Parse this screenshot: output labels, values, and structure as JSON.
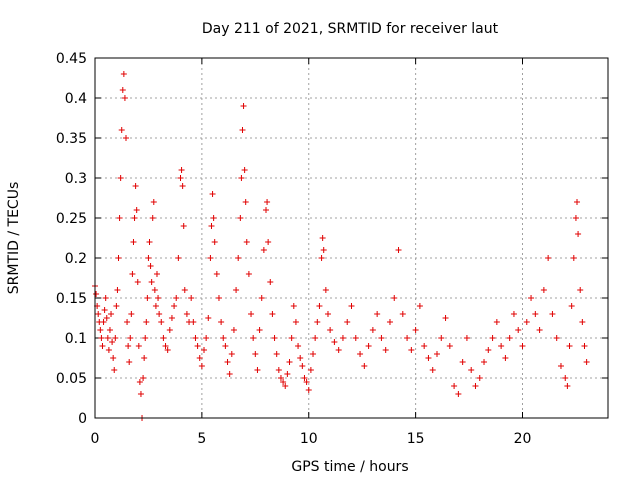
{
  "chart_data": {
    "type": "scatter",
    "title": "Day 211 of 2021, SRMTID for receiver laut",
    "xlabel": "GPS time / hours",
    "ylabel": "SRMTID / TECUs",
    "xlim": [
      0,
      24
    ],
    "ylim": [
      0,
      0.45
    ],
    "xticks": [
      0,
      5,
      10,
      15,
      20
    ],
    "xtick_labels": [
      "0",
      "5",
      "10",
      "15",
      "20"
    ],
    "yticks": [
      0,
      0.05,
      0.1,
      0.15,
      0.2,
      0.25,
      0.3,
      0.35,
      0.4,
      0.45
    ],
    "ytick_labels": [
      "0",
      "0.05",
      "0.1",
      "0.15",
      "0.2",
      "0.25",
      "0.3",
      "0.35",
      "0.4",
      "0.45"
    ],
    "grid": true,
    "marker": "plus",
    "color": "#e00000",
    "series": [
      {
        "name": "SRMTID",
        "points": [
          [
            0.0,
            0.165
          ],
          [
            0.05,
            0.155
          ],
          [
            0.1,
            0.14
          ],
          [
            0.15,
            0.13
          ],
          [
            0.2,
            0.12
          ],
          [
            0.25,
            0.11
          ],
          [
            0.3,
            0.1
          ],
          [
            0.35,
            0.09
          ],
          [
            0.4,
            0.12
          ],
          [
            0.45,
            0.135
          ],
          [
            0.5,
            0.15
          ],
          [
            0.55,
            0.125
          ],
          [
            0.6,
            0.1
          ],
          [
            0.65,
            0.085
          ],
          [
            0.7,
            0.11
          ],
          [
            0.75,
            0.13
          ],
          [
            0.8,
            0.095
          ],
          [
            0.85,
            0.075
          ],
          [
            0.9,
            0.06
          ],
          [
            0.95,
            0.1
          ],
          [
            1.0,
            0.14
          ],
          [
            1.05,
            0.16
          ],
          [
            1.1,
            0.2
          ],
          [
            1.15,
            0.25
          ],
          [
            1.2,
            0.3
          ],
          [
            1.25,
            0.36
          ],
          [
            1.3,
            0.41
          ],
          [
            1.35,
            0.43
          ],
          [
            1.4,
            0.4
          ],
          [
            1.45,
            0.35
          ],
          [
            1.5,
            0.12
          ],
          [
            1.55,
            0.09
          ],
          [
            1.6,
            0.07
          ],
          [
            1.65,
            0.1
          ],
          [
            1.7,
            0.13
          ],
          [
            1.75,
            0.18
          ],
          [
            1.8,
            0.22
          ],
          [
            1.85,
            0.25
          ],
          [
            1.9,
            0.29
          ],
          [
            1.95,
            0.26
          ],
          [
            2.0,
            0.17
          ],
          [
            2.05,
            0.09
          ],
          [
            2.1,
            0.045
          ],
          [
            2.15,
            0.03
          ],
          [
            2.2,
            0.0
          ],
          [
            2.25,
            0.05
          ],
          [
            2.3,
            0.075
          ],
          [
            2.35,
            0.1
          ],
          [
            2.4,
            0.12
          ],
          [
            2.45,
            0.15
          ],
          [
            2.5,
            0.2
          ],
          [
            2.55,
            0.22
          ],
          [
            2.6,
            0.19
          ],
          [
            2.65,
            0.17
          ],
          [
            2.7,
            0.25
          ],
          [
            2.75,
            0.27
          ],
          [
            2.8,
            0.16
          ],
          [
            2.85,
            0.14
          ],
          [
            2.9,
            0.18
          ],
          [
            2.95,
            0.15
          ],
          [
            3.0,
            0.13
          ],
          [
            3.1,
            0.12
          ],
          [
            3.2,
            0.1
          ],
          [
            3.3,
            0.09
          ],
          [
            3.4,
            0.085
          ],
          [
            3.5,
            0.11
          ],
          [
            3.6,
            0.125
          ],
          [
            3.7,
            0.14
          ],
          [
            3.8,
            0.15
          ],
          [
            3.9,
            0.2
          ],
          [
            4.0,
            0.3
          ],
          [
            4.05,
            0.31
          ],
          [
            4.1,
            0.29
          ],
          [
            4.15,
            0.24
          ],
          [
            4.2,
            0.16
          ],
          [
            4.3,
            0.13
          ],
          [
            4.4,
            0.12
          ],
          [
            4.5,
            0.15
          ],
          [
            4.6,
            0.12
          ],
          [
            4.7,
            0.1
          ],
          [
            4.8,
            0.09
          ],
          [
            4.9,
            0.075
          ],
          [
            5.0,
            0.065
          ],
          [
            5.1,
            0.085
          ],
          [
            5.2,
            0.1
          ],
          [
            5.3,
            0.125
          ],
          [
            5.4,
            0.2
          ],
          [
            5.45,
            0.24
          ],
          [
            5.5,
            0.28
          ],
          [
            5.55,
            0.25
          ],
          [
            5.6,
            0.22
          ],
          [
            5.7,
            0.18
          ],
          [
            5.8,
            0.15
          ],
          [
            5.9,
            0.12
          ],
          [
            6.0,
            0.1
          ],
          [
            6.1,
            0.09
          ],
          [
            6.2,
            0.07
          ],
          [
            6.3,
            0.055
          ],
          [
            6.4,
            0.08
          ],
          [
            6.5,
            0.11
          ],
          [
            6.6,
            0.16
          ],
          [
            6.7,
            0.2
          ],
          [
            6.8,
            0.25
          ],
          [
            6.85,
            0.3
          ],
          [
            6.9,
            0.36
          ],
          [
            6.95,
            0.39
          ],
          [
            7.0,
            0.31
          ],
          [
            7.05,
            0.27
          ],
          [
            7.1,
            0.22
          ],
          [
            7.2,
            0.18
          ],
          [
            7.3,
            0.13
          ],
          [
            7.4,
            0.1
          ],
          [
            7.5,
            0.08
          ],
          [
            7.6,
            0.06
          ],
          [
            7.7,
            0.11
          ],
          [
            7.8,
            0.15
          ],
          [
            7.9,
            0.21
          ],
          [
            8.0,
            0.26
          ],
          [
            8.05,
            0.27
          ],
          [
            8.1,
            0.22
          ],
          [
            8.2,
            0.17
          ],
          [
            8.3,
            0.13
          ],
          [
            8.4,
            0.1
          ],
          [
            8.5,
            0.08
          ],
          [
            8.6,
            0.06
          ],
          [
            8.7,
            0.05
          ],
          [
            8.8,
            0.045
          ],
          [
            8.9,
            0.04
          ],
          [
            9.0,
            0.055
          ],
          [
            9.1,
            0.07
          ],
          [
            9.2,
            0.1
          ],
          [
            9.3,
            0.14
          ],
          [
            9.4,
            0.12
          ],
          [
            9.5,
            0.09
          ],
          [
            9.6,
            0.075
          ],
          [
            9.7,
            0.065
          ],
          [
            9.8,
            0.05
          ],
          [
            9.9,
            0.045
          ],
          [
            10.0,
            0.035
          ],
          [
            10.1,
            0.06
          ],
          [
            10.2,
            0.08
          ],
          [
            10.3,
            0.1
          ],
          [
            10.4,
            0.12
          ],
          [
            10.5,
            0.14
          ],
          [
            10.6,
            0.2
          ],
          [
            10.65,
            0.225
          ],
          [
            10.7,
            0.21
          ],
          [
            10.8,
            0.16
          ],
          [
            10.9,
            0.13
          ],
          [
            11.0,
            0.11
          ],
          [
            11.2,
            0.095
          ],
          [
            11.4,
            0.085
          ],
          [
            11.6,
            0.1
          ],
          [
            11.8,
            0.12
          ],
          [
            12.0,
            0.14
          ],
          [
            12.2,
            0.1
          ],
          [
            12.4,
            0.08
          ],
          [
            12.6,
            0.065
          ],
          [
            12.8,
            0.09
          ],
          [
            13.0,
            0.11
          ],
          [
            13.2,
            0.13
          ],
          [
            13.4,
            0.1
          ],
          [
            13.6,
            0.085
          ],
          [
            13.8,
            0.12
          ],
          [
            14.0,
            0.15
          ],
          [
            14.2,
            0.21
          ],
          [
            14.4,
            0.13
          ],
          [
            14.6,
            0.1
          ],
          [
            14.8,
            0.085
          ],
          [
            15.0,
            0.11
          ],
          [
            15.2,
            0.14
          ],
          [
            15.4,
            0.09
          ],
          [
            15.6,
            0.075
          ],
          [
            15.8,
            0.06
          ],
          [
            16.0,
            0.08
          ],
          [
            16.2,
            0.1
          ],
          [
            16.4,
            0.125
          ],
          [
            16.6,
            0.09
          ],
          [
            16.8,
            0.04
          ],
          [
            17.0,
            0.03
          ],
          [
            17.2,
            0.07
          ],
          [
            17.4,
            0.1
          ],
          [
            17.6,
            0.06
          ],
          [
            17.8,
            0.04
          ],
          [
            18.0,
            0.05
          ],
          [
            18.2,
            0.07
          ],
          [
            18.4,
            0.085
          ],
          [
            18.6,
            0.1
          ],
          [
            18.8,
            0.12
          ],
          [
            19.0,
            0.09
          ],
          [
            19.2,
            0.075
          ],
          [
            19.4,
            0.1
          ],
          [
            19.6,
            0.13
          ],
          [
            19.8,
            0.11
          ],
          [
            20.0,
            0.09
          ],
          [
            20.2,
            0.12
          ],
          [
            20.4,
            0.15
          ],
          [
            20.6,
            0.13
          ],
          [
            20.8,
            0.11
          ],
          [
            21.0,
            0.16
          ],
          [
            21.2,
            0.2
          ],
          [
            21.4,
            0.13
          ],
          [
            21.6,
            0.1
          ],
          [
            21.8,
            0.065
          ],
          [
            22.0,
            0.05
          ],
          [
            22.1,
            0.04
          ],
          [
            22.2,
            0.09
          ],
          [
            22.3,
            0.14
          ],
          [
            22.4,
            0.2
          ],
          [
            22.5,
            0.25
          ],
          [
            22.55,
            0.27
          ],
          [
            22.6,
            0.23
          ],
          [
            22.7,
            0.16
          ],
          [
            22.8,
            0.12
          ],
          [
            22.9,
            0.09
          ],
          [
            23.0,
            0.07
          ]
        ]
      }
    ]
  }
}
